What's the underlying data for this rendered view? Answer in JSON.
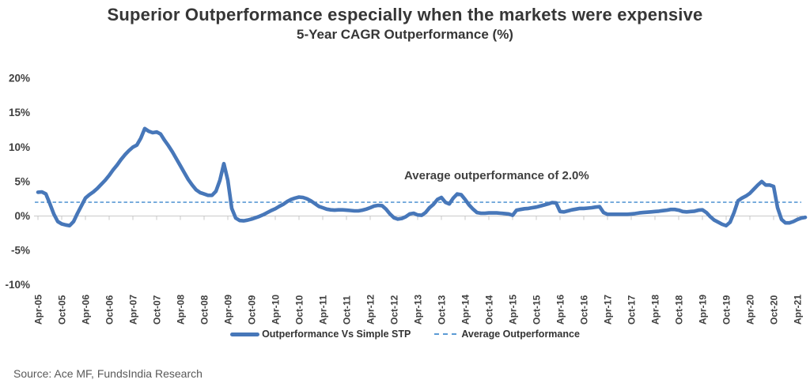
{
  "header": {
    "title": "Superior Outperformance especially when the markets were expensive",
    "subtitle": "5-Year CAGR Outperformance (%)"
  },
  "annotation": {
    "text": "Average outperformance of 2.0%"
  },
  "legend": {
    "items": [
      {
        "label": "Outperformance Vs Simple STP",
        "style": "solid"
      },
      {
        "label": "Average Outperformance",
        "style": "dashed"
      }
    ]
  },
  "source": {
    "text": "Source: Ace MF, FundsIndia Research"
  },
  "colors": {
    "series": "#4777B9",
    "average": "#5B9BD5",
    "axis": "#C9C9C9",
    "text": "#404040",
    "title_text": "#363636",
    "source_text": "#595959"
  },
  "chart_data": {
    "type": "line",
    "title": "Superior Outperformance especially when the markets were expensive",
    "subtitle": "5-Year CAGR Outperformance (%)",
    "ylabel": "5-Year CAGR Outperformance (%)",
    "ylim": [
      -10,
      20
    ],
    "grid": false,
    "legend_position": "bottom",
    "yticks": [
      {
        "label": "20%",
        "value": 20
      },
      {
        "label": "15%",
        "value": 15
      },
      {
        "label": "10%",
        "value": 10
      },
      {
        "label": "5%",
        "value": 5
      },
      {
        "label": "0%",
        "value": 0
      },
      {
        "label": "-5%",
        "value": -5
      },
      {
        "label": "-10%",
        "value": -10
      }
    ],
    "x_interval": "monthly",
    "x_start": "Apr-05",
    "x_tick_every_n_points": 6,
    "x_tick_labels": [
      "Apr-05",
      "Oct-05",
      "Apr-06",
      "Oct-06",
      "Apr-07",
      "Oct-07",
      "Apr-08",
      "Oct-08",
      "Apr-09",
      "Oct-09",
      "Apr-10",
      "Oct-10",
      "Apr-11",
      "Oct-11",
      "Apr-12",
      "Oct-12",
      "Apr-13",
      "Oct-13",
      "Apr-14",
      "Oct-14",
      "Apr-15",
      "Oct-15",
      "Apr-16",
      "Oct-16",
      "Apr-17",
      "Oct-17",
      "Apr-18",
      "Oct-18",
      "Apr-19",
      "Oct-19",
      "Apr-20",
      "Oct-20",
      "Apr-21"
    ],
    "average_annotation": "Average outperformance of 2.0%",
    "series": [
      {
        "name": "Outperformance Vs Simple STP",
        "style": "solid",
        "values": [
          3.45,
          3.5,
          3.2,
          1.8,
          0.3,
          -0.8,
          -1.15,
          -1.3,
          -1.4,
          -0.8,
          0.4,
          1.5,
          2.6,
          3.1,
          3.5,
          4.0,
          4.6,
          5.2,
          5.9,
          6.7,
          7.4,
          8.2,
          8.9,
          9.5,
          10.0,
          10.3,
          11.3,
          12.7,
          12.3,
          12.1,
          12.2,
          11.9,
          11.0,
          10.2,
          9.3,
          8.3,
          7.3,
          6.3,
          5.3,
          4.5,
          3.8,
          3.4,
          3.2,
          3.0,
          3.0,
          3.6,
          5.2,
          7.6,
          5.2,
          1.1,
          -0.3,
          -0.65,
          -0.7,
          -0.6,
          -0.45,
          -0.25,
          -0.05,
          0.2,
          0.5,
          0.8,
          1.05,
          1.4,
          1.7,
          2.1,
          2.4,
          2.6,
          2.75,
          2.7,
          2.5,
          2.2,
          1.8,
          1.4,
          1.2,
          1.0,
          0.9,
          0.85,
          0.9,
          0.9,
          0.85,
          0.8,
          0.75,
          0.75,
          0.85,
          1.0,
          1.2,
          1.45,
          1.55,
          1.5,
          1.0,
          0.3,
          -0.25,
          -0.45,
          -0.35,
          -0.1,
          0.3,
          0.4,
          0.15,
          0.1,
          0.5,
          1.2,
          1.7,
          2.4,
          2.7,
          2.0,
          1.75,
          2.6,
          3.2,
          3.1,
          2.4,
          1.6,
          1.0,
          0.5,
          0.4,
          0.4,
          0.45,
          0.45,
          0.45,
          0.4,
          0.35,
          0.3,
          0.1,
          0.85,
          0.95,
          1.05,
          1.1,
          1.2,
          1.3,
          1.45,
          1.6,
          1.75,
          1.95,
          1.9,
          0.65,
          0.6,
          0.75,
          0.9,
          1.0,
          1.1,
          1.1,
          1.15,
          1.2,
          1.3,
          1.35,
          0.5,
          0.25,
          0.25,
          0.25,
          0.25,
          0.25,
          0.25,
          0.3,
          0.35,
          0.45,
          0.5,
          0.55,
          0.6,
          0.65,
          0.7,
          0.78,
          0.85,
          0.95,
          0.95,
          0.85,
          0.65,
          0.6,
          0.65,
          0.7,
          0.85,
          0.9,
          0.5,
          -0.1,
          -0.6,
          -0.9,
          -1.2,
          -1.4,
          -0.9,
          0.5,
          2.2,
          2.6,
          2.9,
          3.3,
          3.9,
          4.5,
          5.0,
          4.5,
          4.5,
          4.3,
          1.2,
          -0.5,
          -1.0,
          -1.0,
          -0.8,
          -0.5,
          -0.3,
          -0.2
        ]
      },
      {
        "name": "Average Outperformance",
        "style": "dashed",
        "constant_value": 2.0
      }
    ]
  }
}
